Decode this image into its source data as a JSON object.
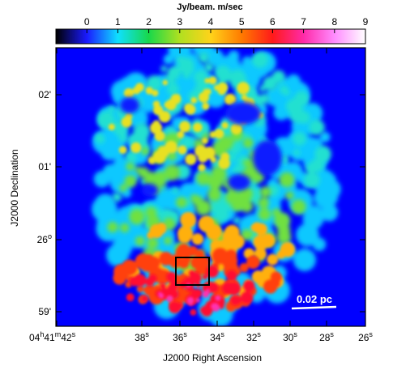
{
  "chart_data": {
    "type": "heatmap",
    "colorbar": {
      "title": "Jy/beam. m/sec",
      "ticks": [
        "0",
        "1",
        "2",
        "3",
        "4",
        "5",
        "6",
        "7",
        "8",
        "9"
      ],
      "vmin": -1,
      "vmax": 9,
      "colormap": [
        "#000000",
        "#1a1aff",
        "#0fe0ff",
        "#18d84a",
        "#b0e020",
        "#ffd31a",
        "#ff7a00",
        "#ff1a1a",
        "#ff2aa8",
        "#ff8cff",
        "#ffffff"
      ]
    },
    "xlabel": "J2000 Right Ascension",
    "ylabel": "J2000 Declination",
    "x_ticks": [
      {
        "h": "04",
        "hs": "h",
        "m": "41",
        "ms": "m",
        "s": "42",
        "ss": "s"
      },
      {
        "s": "38",
        "ss": "s"
      },
      {
        "s": "36",
        "ss": "s"
      },
      {
        "s": "34",
        "ss": "s"
      },
      {
        "s": "32",
        "ss": "s"
      },
      {
        "s": "30",
        "ss": "s"
      },
      {
        "s": "28",
        "ss": "s"
      },
      {
        "s": "26",
        "ss": "s"
      }
    ],
    "y_ticks": [
      {
        "label": "02'",
        "sup": ""
      },
      {
        "label": "01'",
        "sup": ""
      },
      {
        "label": "26",
        "sup": "o"
      },
      {
        "label": "59'",
        "sup": ""
      }
    ],
    "scale_bar_label": "0.02 pc",
    "background_color": "#0000ff"
  }
}
